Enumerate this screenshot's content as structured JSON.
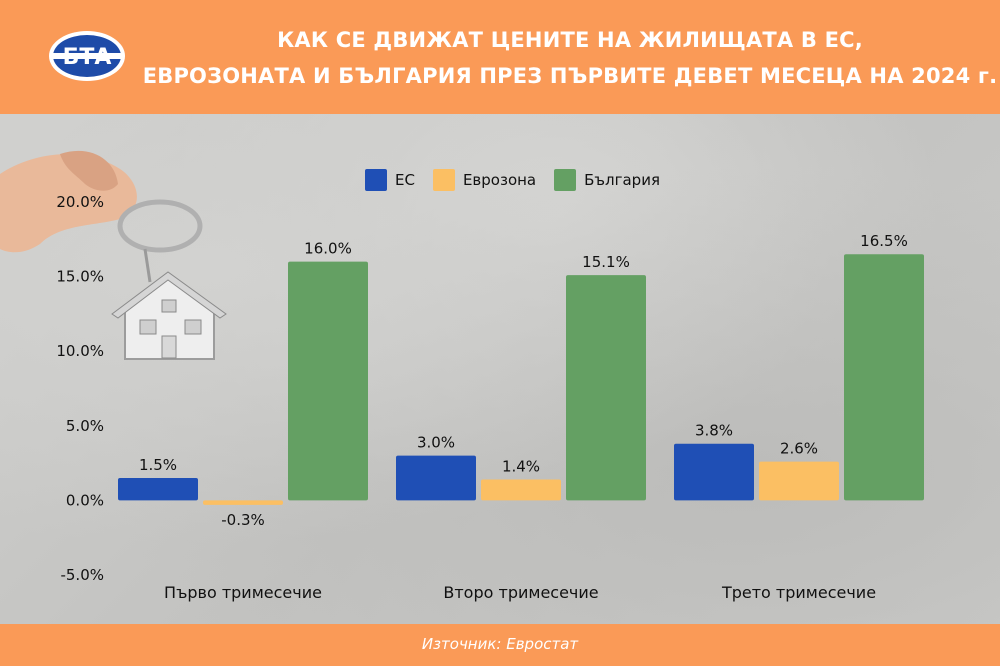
{
  "header": {
    "logo_text": "БТА",
    "title_line1": "КАК СЕ ДВИЖАТ ЦЕНИТЕ НА ЖИЛИЩАТА В ЕС,",
    "title_line2": "ЕВРОЗОНАТА И БЪЛГАРИЯ ПРЕЗ ПЪРВИТЕ ДЕВЕТ МЕСЕЦА НА 2024 г."
  },
  "footer": {
    "source": "Източник: Евростат"
  },
  "colors": {
    "header": "#fa9a57",
    "eu": "#1f4fb5",
    "eurozone": "#fbbf63",
    "bulgaria": "#64a063"
  },
  "chart_data": {
    "type": "bar",
    "categories": [
      "Първо тримесечие",
      "Второ тримесечие",
      "Трето тримесечие"
    ],
    "series": [
      {
        "name": "ЕС",
        "values": [
          1.5,
          3.0,
          3.8
        ],
        "labels": [
          "1.5%",
          "3.0%",
          "3.8%"
        ],
        "color": "#1f4fb5"
      },
      {
        "name": "Еврозона",
        "values": [
          -0.3,
          1.4,
          2.6
        ],
        "labels": [
          "-0.3%",
          "1.4%",
          "2.6%"
        ],
        "color": "#fbbf63"
      },
      {
        "name": "България",
        "values": [
          16.0,
          15.1,
          16.5
        ],
        "labels": [
          "16.0%",
          "15.1%",
          "16.5%"
        ],
        "color": "#64a063"
      }
    ],
    "yticks": [
      -5,
      0,
      5,
      10,
      15,
      20
    ],
    "ytick_labels": [
      "-5.0%",
      "0.0%",
      "5.0%",
      "10.0%",
      "15.0%",
      "20.0%"
    ],
    "ylim": [
      -5,
      20
    ],
    "grid": false,
    "legend_position": "top-center"
  }
}
